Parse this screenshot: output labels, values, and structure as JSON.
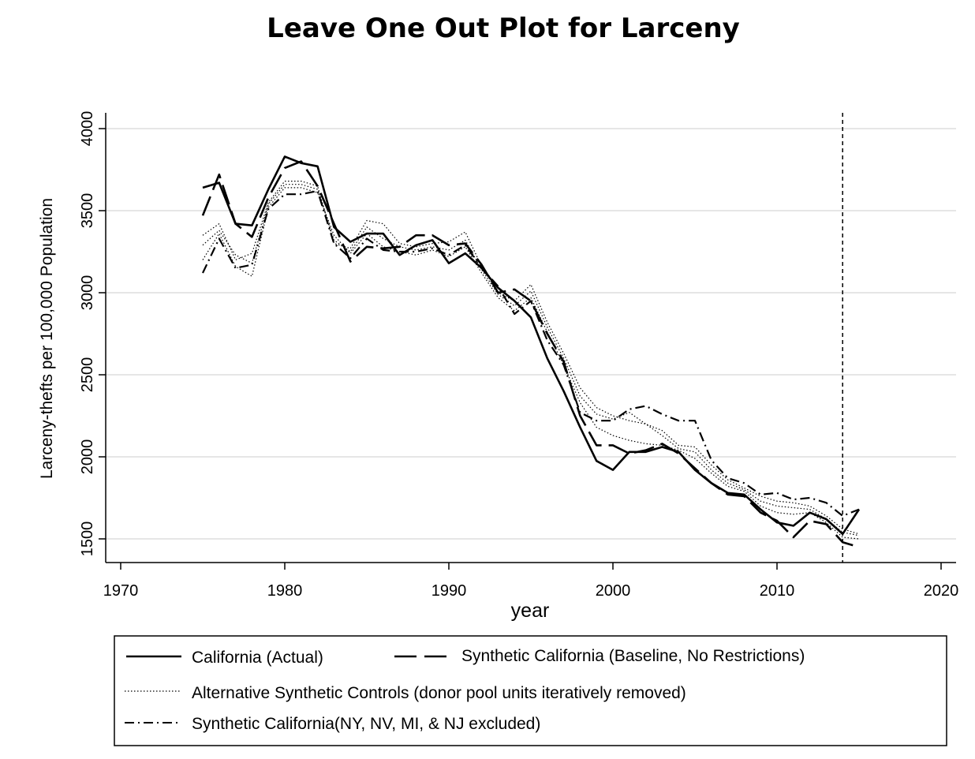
{
  "chart_data": {
    "type": "line",
    "title": "Leave One Out Plot for Larceny",
    "xlabel": "year",
    "ylabel": "Larceny-thefts per 100,000 Population",
    "xlim": [
      1968,
      2021
    ],
    "ylim": [
      1350,
      4080
    ],
    "x_ticks": [
      1970,
      1980,
      1990,
      2000,
      2010,
      2020
    ],
    "y_ticks": [
      1500,
      2000,
      2500,
      3000,
      3500,
      4000
    ],
    "grid": true,
    "reference_line": {
      "x": 2014,
      "style": "dashed"
    },
    "legend_position": "bottom",
    "series": [
      {
        "name": "California (Actual)",
        "style": "solid",
        "x": [
          1975,
          1976,
          1977,
          1978,
          1979,
          1980,
          1981,
          1982,
          1983,
          1984,
          1985,
          1986,
          1987,
          1988,
          1989,
          1990,
          1991,
          1992,
          1993,
          1994,
          1995,
          1996,
          1997,
          1998,
          1999,
          2000,
          2001,
          2002,
          2003,
          2004,
          2005,
          2006,
          2007,
          2008,
          2009,
          2010,
          2011,
          2012,
          2013,
          2014,
          2015
        ],
        "values": [
          3640,
          3670,
          3420,
          3410,
          3630,
          3830,
          3790,
          3770,
          3400,
          3310,
          3360,
          3360,
          3230,
          3290,
          3320,
          3180,
          3240,
          3150,
          3030,
          2950,
          2850,
          2600,
          2400,
          2180,
          1975,
          1920,
          2030,
          2030,
          2060,
          2030,
          1920,
          1840,
          1780,
          1770,
          1680,
          1600,
          1580,
          1660,
          1620,
          1530,
          1680
        ]
      },
      {
        "name": "Synthetic California (Baseline, No Restrictions)",
        "style": "longdash",
        "x": [
          1975,
          1976,
          1977,
          1978,
          1979,
          1980,
          1981,
          1982,
          1983,
          1984,
          1985,
          1986,
          1987,
          1988,
          1989,
          1990,
          1991,
          1992,
          1993,
          1994,
          1995,
          1996,
          1997,
          1998,
          1999,
          2000,
          2001,
          2002,
          2003,
          2004,
          2005,
          2006,
          2007,
          2008,
          2009,
          2010,
          2011,
          2012,
          2013,
          2014,
          2015
        ],
        "values": [
          3470,
          3720,
          3420,
          3340,
          3580,
          3760,
          3800,
          3650,
          3420,
          3190,
          3280,
          3270,
          3280,
          3350,
          3350,
          3290,
          3300,
          3170,
          3000,
          3020,
          2950,
          2750,
          2580,
          2250,
          2070,
          2070,
          2020,
          2040,
          2080,
          2020,
          1930,
          1840,
          1770,
          1760,
          1660,
          1610,
          1510,
          1610,
          1590,
          1480,
          1450
        ]
      },
      {
        "name": "Alternative Synthetic Controls (donor pool units iteratively removed)",
        "style": "dotted",
        "x": [
          1975,
          1976,
          1977,
          1978,
          1979,
          1980,
          1981,
          1982,
          1983,
          1984,
          1985,
          1986,
          1987,
          1988,
          1989,
          1990,
          1991,
          1992,
          1993,
          1994,
          1995,
          1996,
          1997,
          1998,
          1999,
          2000,
          2001,
          2002,
          2003,
          2004,
          2005,
          2006,
          2007,
          2008,
          2009,
          2010,
          2011,
          2012,
          2013,
          2014,
          2015
        ],
        "values": [
          3350,
          3420,
          3200,
          3240,
          3550,
          3680,
          3680,
          3650,
          3300,
          3270,
          3440,
          3420,
          3300,
          3280,
          3300,
          3310,
          3370,
          3160,
          3000,
          2950,
          3050,
          2820,
          2630,
          2420,
          2300,
          2250,
          2220,
          2200,
          2160,
          2070,
          2060,
          1950,
          1860,
          1810,
          1760,
          1730,
          1720,
          1700,
          1640,
          1560,
          1530
        ]
      },
      {
        "name": "Alternative Synthetic Controls (donor pool units iteratively removed)",
        "style": "dotted",
        "x": [
          1975,
          1976,
          1977,
          1978,
          1979,
          1980,
          1981,
          1982,
          1983,
          1984,
          1985,
          1986,
          1987,
          1988,
          1989,
          1990,
          1991,
          1992,
          1993,
          1994,
          1995,
          1996,
          1997,
          1998,
          1999,
          2000,
          2001,
          2002,
          2003,
          2004,
          2005,
          2006,
          2007,
          2008,
          2009,
          2010,
          2011,
          2012,
          2013,
          2014,
          2015
        ],
        "values": [
          3200,
          3360,
          3160,
          3100,
          3520,
          3640,
          3640,
          3610,
          3350,
          3240,
          3360,
          3280,
          3250,
          3230,
          3260,
          3220,
          3280,
          3120,
          2970,
          2890,
          2970,
          2760,
          2560,
          2330,
          2180,
          2130,
          2100,
          2080,
          2070,
          2040,
          1990,
          1900,
          1820,
          1790,
          1700,
          1660,
          1650,
          1660,
          1600,
          1510,
          1500
        ]
      },
      {
        "name": "Alternative Synthetic Controls (donor pool units iteratively removed)",
        "style": "dotted",
        "x": [
          1975,
          1976,
          1977,
          1978,
          1979,
          1980,
          1981,
          1982,
          1983,
          1984,
          1985,
          1986,
          1987,
          1988,
          1989,
          1990,
          1991,
          1992,
          1993,
          1994,
          1995,
          1996,
          1997,
          1998,
          1999,
          2000,
          2001,
          2002,
          2003,
          2004,
          2005,
          2006,
          2007,
          2008,
          2009,
          2010,
          2011,
          2012,
          2013,
          2014,
          2015
        ],
        "values": [
          3290,
          3380,
          3230,
          3180,
          3540,
          3660,
          3660,
          3630,
          3320,
          3250,
          3400,
          3330,
          3280,
          3260,
          3280,
          3260,
          3320,
          3140,
          2990,
          2920,
          3010,
          2790,
          2600,
          2370,
          2260,
          2230,
          2270,
          2200,
          2130,
          2050,
          2030,
          1920,
          1840,
          1800,
          1730,
          1700,
          1690,
          1680,
          1620,
          1540,
          1520
        ]
      },
      {
        "name": "Synthetic California(NY, NV, MI, & NJ excluded)",
        "style": "dashdot",
        "x": [
          1975,
          1976,
          1977,
          1978,
          1979,
          1980,
          1981,
          1982,
          1983,
          1984,
          1985,
          1986,
          1987,
          1988,
          1989,
          1990,
          1991,
          1992,
          1993,
          1994,
          1995,
          1996,
          1997,
          1998,
          1999,
          2000,
          2001,
          2002,
          2003,
          2004,
          2005,
          2006,
          2007,
          2008,
          2009,
          2010,
          2011,
          2012,
          2013,
          2014,
          2015
        ],
        "values": [
          3120,
          3330,
          3150,
          3170,
          3510,
          3600,
          3600,
          3620,
          3300,
          3210,
          3330,
          3260,
          3250,
          3250,
          3270,
          3230,
          3290,
          3150,
          3040,
          2870,
          2950,
          2710,
          2560,
          2270,
          2220,
          2220,
          2290,
          2310,
          2260,
          2220,
          2220,
          1980,
          1870,
          1840,
          1770,
          1780,
          1740,
          1750,
          1720,
          1640,
          1680
        ]
      }
    ]
  },
  "legend": {
    "entries": [
      {
        "label": "California (Actual)",
        "style": "solid"
      },
      {
        "label": "Synthetic California (Baseline, No Restrictions)",
        "style": "longdash"
      },
      {
        "label": "Alternative Synthetic Controls (donor pool units iteratively removed)",
        "style": "dotted"
      },
      {
        "label": "Synthetic California(NY, NV, MI, & NJ excluded)",
        "style": "dashdot"
      }
    ]
  },
  "colors": {
    "line": "#000000",
    "grid": "#e6e6e6",
    "axis": "#000000"
  }
}
